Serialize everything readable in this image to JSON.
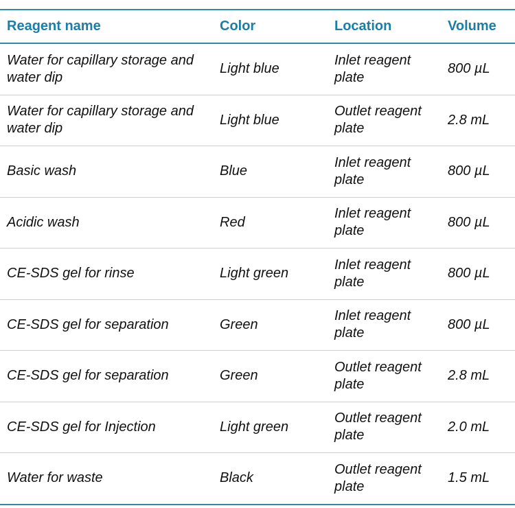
{
  "table": {
    "headers": [
      "Reagent name",
      "Color",
      "Location",
      "Volume"
    ],
    "rows": [
      [
        "Water for capillary storage and water dip",
        "Light blue",
        "Inlet reagent plate",
        "800 µL"
      ],
      [
        "Water for capillary storage and water dip",
        "Light blue",
        "Outlet reagent plate",
        "2.8 mL"
      ],
      [
        "Basic wash",
        "Blue",
        "Inlet reagent plate",
        "800 µL"
      ],
      [
        "Acidic wash",
        "Red",
        "Inlet reagent plate",
        "800 µL"
      ],
      [
        "CE-SDS gel for rinse",
        "Light green",
        "Inlet reagent plate",
        "800 µL"
      ],
      [
        "CE-SDS gel for separation",
        "Green",
        "Inlet reagent plate",
        "800 µL"
      ],
      [
        "CE-SDS gel for separation",
        "Green",
        "Outlet reagent plate",
        "2.8 mL"
      ],
      [
        "CE-SDS gel for Injection",
        "Light green",
        "Outlet reagent plate",
        "2.0 mL"
      ],
      [
        "Water for waste",
        "Black",
        "Outlet reagent plate",
        "1.5 mL"
      ]
    ]
  }
}
